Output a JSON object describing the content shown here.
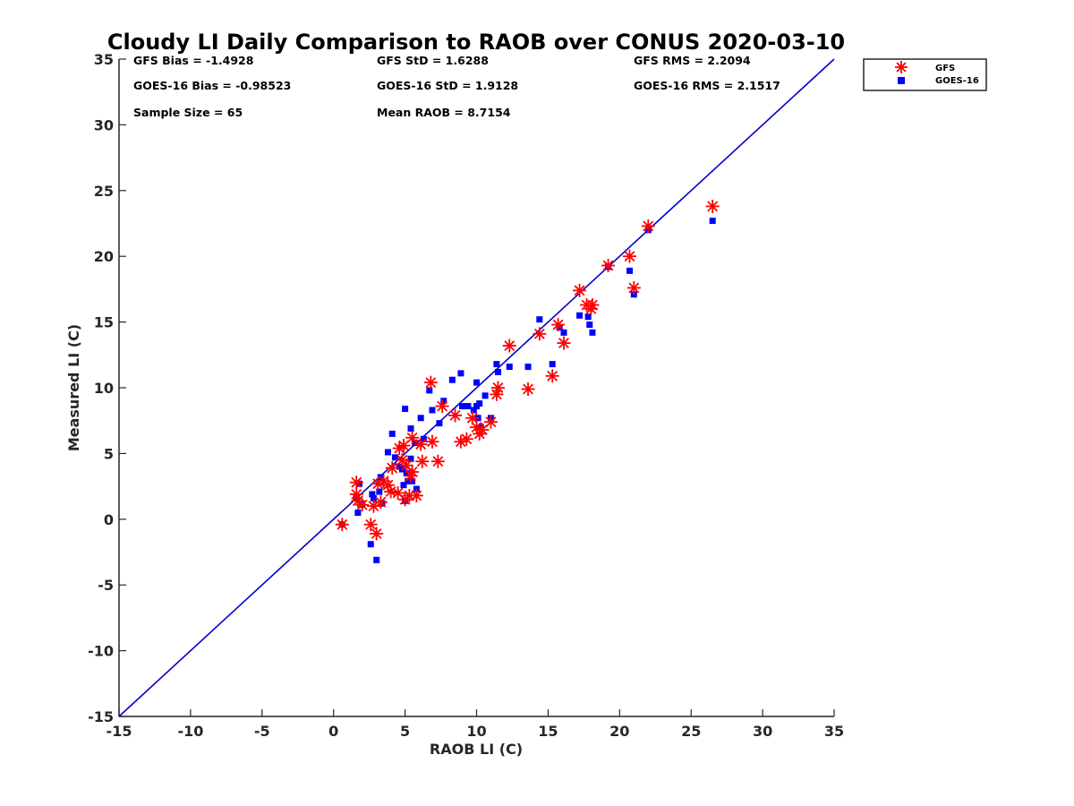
{
  "chart_data": {
    "type": "scatter",
    "title": "Cloudy LI Daily Comparison to RAOB over CONUS 2020-03-10",
    "xlabel": "RAOB LI (C)",
    "ylabel": "Measured LI (C)",
    "xlim": [
      -15,
      35
    ],
    "ylim": [
      -15,
      35
    ],
    "xticks": [
      "-15",
      "-10",
      "-5",
      "0",
      "5",
      "10",
      "15",
      "20",
      "25",
      "30",
      "35"
    ],
    "yticks": [
      "-15",
      "-10",
      "-5",
      "0",
      "5",
      "10",
      "15",
      "20",
      "25",
      "30",
      "35"
    ],
    "grid": false,
    "legend_position": "outside top-right",
    "reference_line": {
      "x": [
        -15,
        35
      ],
      "y": [
        -15,
        35
      ],
      "color": "#0000cc"
    },
    "stats": [
      "GFS Bias = -1.4928",
      "GFS StD = 1.6288",
      "GFS RMS = 2.2094",
      "GOES-16 Bias = -0.98523",
      "GOES-16 StD = 1.9128",
      "GOES-16 RMS = 2.1517",
      "Sample Size = 65",
      "Mean RAOB = 8.7154"
    ],
    "series": [
      {
        "name": "GFS",
        "marker": "asterisk",
        "color": "#ff0000",
        "points": [
          [
            0.6,
            -0.4
          ],
          [
            1.6,
            2.8
          ],
          [
            1.6,
            1.9
          ],
          [
            1.7,
            1.4
          ],
          [
            2.0,
            1.1
          ],
          [
            2.6,
            -0.4
          ],
          [
            2.8,
            1.0
          ],
          [
            3.0,
            -1.1
          ],
          [
            3.1,
            2.7
          ],
          [
            3.3,
            1.3
          ],
          [
            3.5,
            2.9
          ],
          [
            3.8,
            2.6
          ],
          [
            4.0,
            2.1
          ],
          [
            4.1,
            3.9
          ],
          [
            4.5,
            2.0
          ],
          [
            4.6,
            5.4
          ],
          [
            4.8,
            4.5
          ],
          [
            4.9,
            5.6
          ],
          [
            5.0,
            1.5
          ],
          [
            5.1,
            4.1
          ],
          [
            5.3,
            1.8
          ],
          [
            5.4,
            3.3
          ],
          [
            5.5,
            3.6
          ],
          [
            5.5,
            6.2
          ],
          [
            5.8,
            1.8
          ],
          [
            6.1,
            5.7
          ],
          [
            6.2,
            4.4
          ],
          [
            6.8,
            10.4
          ],
          [
            6.9,
            5.9
          ],
          [
            7.3,
            4.4
          ],
          [
            7.6,
            8.6
          ],
          [
            8.5,
            7.9
          ],
          [
            8.9,
            5.9
          ],
          [
            9.3,
            6.1
          ],
          [
            9.7,
            7.7
          ],
          [
            10.0,
            7.0
          ],
          [
            10.2,
            6.5
          ],
          [
            10.4,
            6.8
          ],
          [
            11.0,
            7.4
          ],
          [
            11.4,
            9.5
          ],
          [
            11.5,
            10.0
          ],
          [
            12.3,
            13.2
          ],
          [
            13.6,
            9.9
          ],
          [
            14.4,
            14.1
          ],
          [
            15.3,
            10.9
          ],
          [
            15.7,
            14.8
          ],
          [
            16.1,
            13.4
          ],
          [
            17.2,
            17.4
          ],
          [
            17.7,
            16.3
          ],
          [
            18.0,
            16.0
          ],
          [
            18.1,
            16.3
          ],
          [
            19.2,
            19.3
          ],
          [
            20.7,
            20.0
          ],
          [
            21.0,
            17.6
          ],
          [
            22.0,
            22.3
          ],
          [
            26.5,
            23.8
          ]
        ]
      },
      {
        "name": "GOES-16",
        "marker": "square",
        "color": "#0000ff",
        "points": [
          [
            0.6,
            -0.4
          ],
          [
            1.6,
            1.7
          ],
          [
            1.7,
            0.5
          ],
          [
            1.8,
            2.7
          ],
          [
            2.0,
            1.1
          ],
          [
            2.6,
            -1.9
          ],
          [
            2.7,
            1.9
          ],
          [
            2.8,
            1.6
          ],
          [
            3.0,
            -3.1
          ],
          [
            3.2,
            2.1
          ],
          [
            3.3,
            3.2
          ],
          [
            3.4,
            1.2
          ],
          [
            3.8,
            5.1
          ],
          [
            4.1,
            6.5
          ],
          [
            4.3,
            4.7
          ],
          [
            4.6,
            4.0
          ],
          [
            4.8,
            3.8
          ],
          [
            4.9,
            2.6
          ],
          [
            5.0,
            1.4
          ],
          [
            5.0,
            8.4
          ],
          [
            5.1,
            3.5
          ],
          [
            5.2,
            2.9
          ],
          [
            5.4,
            6.9
          ],
          [
            5.4,
            4.6
          ],
          [
            5.5,
            2.9
          ],
          [
            5.7,
            5.8
          ],
          [
            5.8,
            2.3
          ],
          [
            6.1,
            7.7
          ],
          [
            6.3,
            6.1
          ],
          [
            6.7,
            9.8
          ],
          [
            6.9,
            8.3
          ],
          [
            7.4,
            7.3
          ],
          [
            7.7,
            9.0
          ],
          [
            8.3,
            10.6
          ],
          [
            8.9,
            11.1
          ],
          [
            9.0,
            8.6
          ],
          [
            9.4,
            8.6
          ],
          [
            9.8,
            8.3
          ],
          [
            10.0,
            10.4
          ],
          [
            10.0,
            8.6
          ],
          [
            10.1,
            7.7
          ],
          [
            10.2,
            8.8
          ],
          [
            10.3,
            7.0
          ],
          [
            10.6,
            9.4
          ],
          [
            11.0,
            7.7
          ],
          [
            11.4,
            11.8
          ],
          [
            11.5,
            11.2
          ],
          [
            12.3,
            11.6
          ],
          [
            13.6,
            11.6
          ],
          [
            14.4,
            15.2
          ],
          [
            15.3,
            11.8
          ],
          [
            15.8,
            14.6
          ],
          [
            16.1,
            14.2
          ],
          [
            17.2,
            15.5
          ],
          [
            17.8,
            15.4
          ],
          [
            17.9,
            14.8
          ],
          [
            18.1,
            14.2
          ],
          [
            19.2,
            19.2
          ],
          [
            20.7,
            18.9
          ],
          [
            21.0,
            17.1
          ],
          [
            22.0,
            22.0
          ],
          [
            26.5,
            22.7
          ]
        ]
      }
    ]
  }
}
